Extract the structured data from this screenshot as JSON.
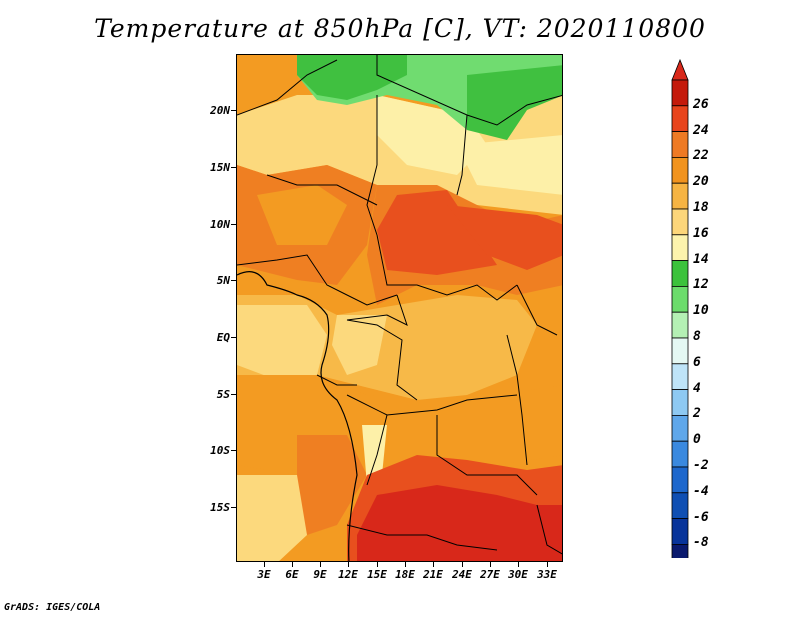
{
  "title": "Temperature at 850hPa [C], VT: 2020110800",
  "credit": "GrADS: IGES/COLA",
  "lat_labels": [
    "20N",
    "15N",
    "10N",
    "5N",
    "EQ",
    "5S",
    "10S",
    "15S"
  ],
  "lon_labels": [
    "3E",
    "6E",
    "9E",
    "12E",
    "15E",
    "18E",
    "21E",
    "24E",
    "27E",
    "30E",
    "33E"
  ],
  "colorbar": {
    "labels": [
      "26",
      "24",
      "22",
      "20",
      "18",
      "16",
      "14",
      "12",
      "10",
      "8",
      "6",
      "4",
      "2",
      "0",
      "-2",
      "-4",
      "-6",
      "-8"
    ],
    "colors": [
      "#c41a0b",
      "#e8441c",
      "#ee7a24",
      "#f1931e",
      "#f6b443",
      "#fdd67a",
      "#fdf3ad",
      "#3cc23c",
      "#6cdc6c",
      "#b4f0b4",
      "#e5f8f3",
      "#bfe4f8",
      "#8ec9f2",
      "#5fa7ea",
      "#3a89df",
      "#1d67cc",
      "#0f4fb3",
      "#08349a",
      "#0a1a6e"
    ],
    "top_color": "#d8281a",
    "bottom_color": "#dcd8f5"
  },
  "map_colors": {
    "hot": "#d8281a",
    "t24": "#e8501e",
    "t22": "#ef7f22",
    "t20": "#f39b22",
    "t18": "#f7b948",
    "t16": "#fcd97d",
    "t14": "#fdf0a8",
    "g12": "#40c040",
    "g10": "#70dc70"
  }
}
